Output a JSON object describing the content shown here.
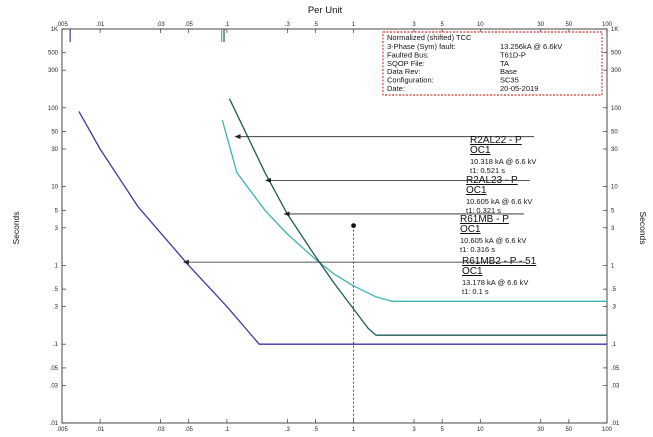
{
  "chart_data": {
    "type": "line",
    "title": "Per Unit",
    "xlabel": "Per Unit",
    "ylabel_left": "Seconds",
    "ylabel_right": "Seconds",
    "xscale": "log",
    "yscale": "log",
    "xlim": [
      0.005,
      100
    ],
    "ylim": [
      0.01,
      1000
    ],
    "x_ticks": [
      {
        "v": 0.005,
        "label": ".005"
      },
      {
        "v": 0.01,
        "label": ".01"
      },
      {
        "v": 0.03,
        "label": ".03"
      },
      {
        "v": 0.05,
        "label": ".05"
      },
      {
        "v": 0.1,
        "label": ".1"
      },
      {
        "v": 0.3,
        "label": ".3"
      },
      {
        "v": 0.5,
        "label": ".5"
      },
      {
        "v": 1,
        "label": "1"
      },
      {
        "v": 3,
        "label": "3"
      },
      {
        "v": 5,
        "label": "5"
      },
      {
        "v": 10,
        "label": "10"
      },
      {
        "v": 30,
        "label": "30"
      },
      {
        "v": 50,
        "label": "50"
      },
      {
        "v": 100,
        "label": "100"
      }
    ],
    "y_ticks": [
      {
        "v": 1000,
        "label": "1K"
      },
      {
        "v": 500,
        "label": "500"
      },
      {
        "v": 300,
        "label": "300"
      },
      {
        "v": 100,
        "label": "100"
      },
      {
        "v": 50,
        "label": "50"
      },
      {
        "v": 30,
        "label": "30"
      },
      {
        "v": 10,
        "label": "10"
      },
      {
        "v": 5,
        "label": "5"
      },
      {
        "v": 3,
        "label": "3"
      },
      {
        "v": 1,
        "label": "1"
      },
      {
        "v": 0.5,
        "label": ".5"
      },
      {
        "v": 0.3,
        "label": ".3"
      },
      {
        "v": 0.1,
        "label": ".1"
      },
      {
        "v": 0.05,
        "label": ".05"
      },
      {
        "v": 0.03,
        "label": ".03"
      },
      {
        "v": 0.01,
        "label": ".01"
      }
    ],
    "series": [
      {
        "color": "#3a3aa0",
        "x": [
          0.0068,
          0.01,
          0.02,
          0.05,
          0.1,
          0.18,
          0.5,
          1,
          100
        ],
        "y": [
          90,
          30,
          5.5,
          1.0,
          0.3,
          0.1,
          0.1,
          0.1,
          0.1
        ]
      },
      {
        "color": "#3fb1b1",
        "x": [
          0.092,
          0.12,
          0.2,
          0.3,
          0.5,
          0.7,
          1,
          1.5,
          2,
          100
        ],
        "y": [
          70,
          15,
          5,
          2.5,
          1.2,
          0.78,
          0.55,
          0.4,
          0.35,
          0.35
        ]
      },
      {
        "color": "#1e5a5a",
        "x": [
          0.105,
          0.2,
          0.3,
          0.5,
          0.7,
          1,
          1.3,
          1.5,
          100
        ],
        "y": [
          130,
          15,
          4.5,
          1.3,
          0.6,
          0.28,
          0.16,
          0.13,
          0.13
        ]
      }
    ],
    "top_marks": [
      {
        "x": 0.0058,
        "color": "#3a3aa0"
      },
      {
        "x": 0.091,
        "color": "#3fb1b1"
      },
      {
        "x": 0.095,
        "color": "#1e5a5a"
      }
    ],
    "fault_marker": {
      "x": 1,
      "y": 3.2,
      "color": "#cc0000"
    },
    "annotations": [
      {
        "name": "R2AL22 - P",
        "oc": "OC1",
        "current": "10.318 kA @ 6.6 kV",
        "time": "t1: 0.521 s",
        "arrow_x": 0.115,
        "arrow_y": 43
      },
      {
        "name": "R2AL23 - P",
        "oc": "OC1",
        "current": "10.605 kA @ 6.6 kV",
        "time": "t1: 0.321 s",
        "arrow_x": 0.2,
        "arrow_y": 12
      },
      {
        "name": "R61MB - P",
        "oc": "OC1",
        "current": "10.605 kA @ 6.6 kV",
        "time": "t1: 0.316 s",
        "arrow_x": 0.28,
        "arrow_y": 4.5
      },
      {
        "name": "R61MB2 - P - 51",
        "oc": "OC1",
        "current": "13.178 kA @ 6.6 kV",
        "time": "t1: 0.1 s",
        "arrow_x": 0.045,
        "arrow_y": 1.1
      }
    ]
  },
  "info_box": {
    "title": "Normalized (shifted) TCC",
    "rows": [
      {
        "label": "3-Phase (Sym)  fault:",
        "value": "13.256kA @ 6.6kV"
      },
      {
        "label": "Faulted  Bus:",
        "value": "T61D-P"
      },
      {
        "label": "SQOP  File:",
        "value": "TA"
      },
      {
        "label": "Data  Rev:",
        "value": "Base"
      },
      {
        "label": "Configuration:",
        "value": "SC35"
      },
      {
        "label": "Date:",
        "value": "20-05-2019"
      }
    ]
  }
}
